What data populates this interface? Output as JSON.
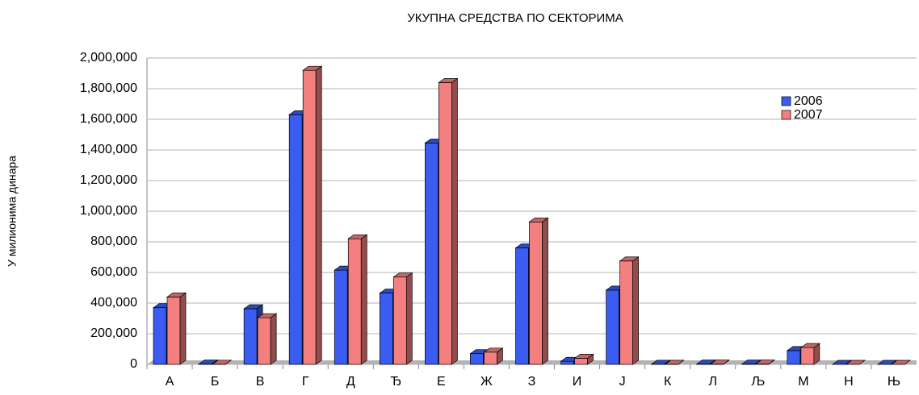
{
  "chart_data": {
    "type": "bar3d",
    "title": "УКУПНА СРЕДСТВА ПО СЕКТОРИМА",
    "y_label": "У милионима динара",
    "categories": [
      "А",
      "Б",
      "В",
      "Г",
      "Д",
      "Ђ",
      "Е",
      "Ж",
      "З",
      "И",
      "Ј",
      "К",
      "Л",
      "Љ",
      "М",
      "Н",
      "Њ"
    ],
    "series": [
      {
        "name": "2006",
        "color": "#3a5cf0",
        "values": [
          370000,
          2000,
          363000,
          1630000,
          615000,
          465000,
          1445000,
          70000,
          760000,
          20000,
          485000,
          1000,
          2000,
          2000,
          90000,
          0,
          0
        ]
      },
      {
        "name": "2007",
        "color": "#f47f7f",
        "values": [
          440000,
          1000,
          305000,
          1920000,
          820000,
          570000,
          1840000,
          80000,
          930000,
          40000,
          675000,
          500,
          2000,
          2000,
          110000,
          0,
          0
        ]
      }
    ],
    "ylim": [
      0,
      2000000
    ],
    "yticks": [
      0,
      {
        "value": 200000,
        "label": "200,000"
      },
      {
        "value": 400000,
        "label": "400,000"
      },
      {
        "value": 600000,
        "label": "600,000"
      },
      {
        "value": 800000,
        "label": "800,000"
      },
      {
        "value": 1000000,
        "label": "1,000,000"
      },
      {
        "value": 1200000,
        "label": "1,200,000"
      },
      {
        "value": 1400000,
        "label": "1,400,000"
      },
      {
        "value": 1600000,
        "label": "1,600,000"
      },
      {
        "value": 1800000,
        "label": "1,800,000"
      },
      {
        "value": 2000000,
        "label": "2,000,000"
      }
    ],
    "grid": true,
    "legend": "right"
  }
}
